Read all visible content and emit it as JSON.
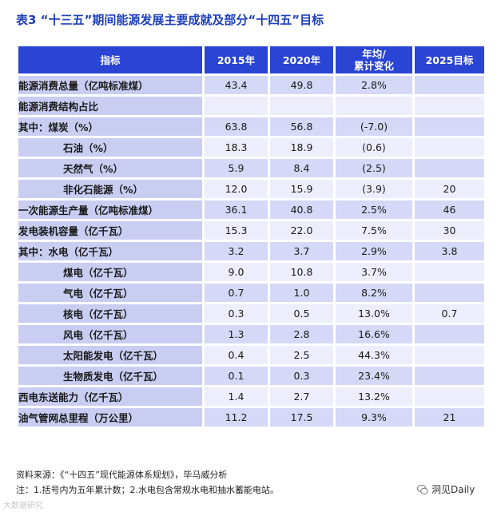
{
  "title": "表3 “十三五”期间能源发展主要成就及部分“十四五”目标",
  "table": {
    "headers": [
      "指标",
      "2015年",
      "2020年",
      "年均/\n累计变化",
      "2025目标"
    ],
    "rows": [
      {
        "label": "能源消费总量（亿吨标准煤）",
        "v2015": "43.4",
        "v2020": "49.8",
        "change": "2.8%",
        "target": ""
      },
      {
        "label": "能源消费结构占比",
        "v2015": "",
        "v2020": "",
        "change": "",
        "target": ""
      },
      {
        "label": "其中：煤炭（%）",
        "v2015": "63.8",
        "v2020": "56.8",
        "change": "(-7.0)",
        "target": ""
      },
      {
        "label": "石油（%）",
        "v2015": "18.3",
        "v2020": "18.9",
        "change": "(0.6)",
        "target": ""
      },
      {
        "label": "天然气（%）",
        "v2015": "5.9",
        "v2020": "8.4",
        "change": "(2.5)",
        "target": ""
      },
      {
        "label": "非化石能源（%）",
        "v2015": "12.0",
        "v2020": "15.9",
        "change": "(3.9)",
        "target": "20"
      },
      {
        "label": "一次能源生产量（亿吨标准煤）",
        "v2015": "36.1",
        "v2020": "40.8",
        "change": "2.5%",
        "target": "46"
      },
      {
        "label": "发电装机容量（亿千瓦）",
        "v2015": "15.3",
        "v2020": "22.0",
        "change": "7.5%",
        "target": "30"
      },
      {
        "label": "其中：水电（亿千瓦）",
        "v2015": "3.2",
        "v2020": "3.7",
        "change": "2.9%",
        "target": "3.8"
      },
      {
        "label": "煤电（亿千瓦）",
        "v2015": "9.0",
        "v2020": "10.8",
        "change": "3.7%",
        "target": ""
      },
      {
        "label": "气电（亿千瓦）",
        "v2015": "0.7",
        "v2020": "1.0",
        "change": "8.2%",
        "target": ""
      },
      {
        "label": "核电（亿千瓦）",
        "v2015": "0.3",
        "v2020": "0.5",
        "change": "13.0%",
        "target": "0.7"
      },
      {
        "label": "风电（亿千瓦）",
        "v2015": "1.3",
        "v2020": "2.8",
        "change": "16.6%",
        "target": ""
      },
      {
        "label": "太阳能发电（亿千瓦）",
        "v2015": "0.4",
        "v2020": "2.5",
        "change": "44.3%",
        "target": ""
      },
      {
        "label": "生物质发电（亿千瓦）",
        "v2015": "0.1",
        "v2020": "0.3",
        "change": "23.4%",
        "target": ""
      },
      {
        "label": "西电东送能力（亿千瓦）",
        "v2015": "1.4",
        "v2020": "2.7",
        "change": "13.2%",
        "target": ""
      },
      {
        "label": "油气管网总里程（万公里）",
        "v2015": "11.2",
        "v2020": "17.5",
        "change": "9.3%",
        "target": "21"
      }
    ]
  },
  "source": "资料来源：《“十四五”现代能源体系规划》，毕马威分析",
  "note": "注：1.括号内为五年累计数；2.水电包含常规水电和抽水蓄能电站。",
  "brand": "洞见Daily",
  "watermark": "大数据研究"
}
